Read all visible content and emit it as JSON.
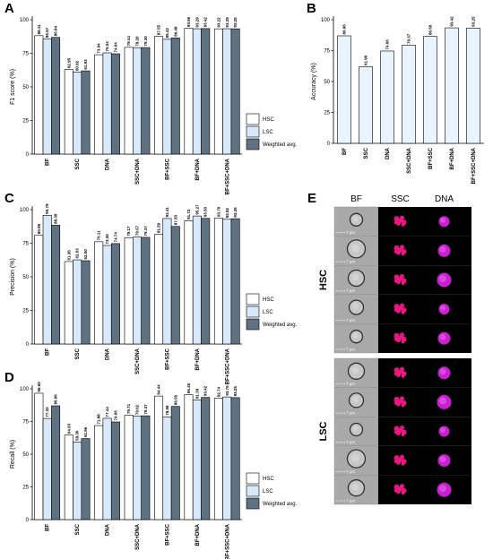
{
  "panels": [
    {
      "letter": "A"
    },
    {
      "letter": "B"
    },
    {
      "letter": "C"
    },
    {
      "letter": "D"
    },
    {
      "letter": "E"
    }
  ],
  "chart_data": [
    {
      "panel": "A",
      "type": "bar",
      "ylabel": "F1 score (%)",
      "ylim": [
        0,
        100
      ],
      "yticks": [
        0,
        25,
        50,
        75,
        100
      ],
      "grid": false,
      "legend_position": "right",
      "categories": [
        "BF",
        "SSC",
        "DNA",
        "SSC+DNA",
        "BF+SSC",
        "BF+DNA",
        "BF+SSC+DNA"
      ],
      "series": [
        {
          "name": "HSC",
          "color": "#ffffff",
          "values": [
            88.11,
            62.95,
            73.94,
            79.44,
            87.55,
            93.56,
            93.22
          ],
          "labels": [
            "88.11",
            "62.95",
            "73.94",
            "79.44",
            "87.55",
            "93.56",
            "93.22"
          ]
        },
        {
          "name": "LSC",
          "color": "#d7e9fa",
          "values": [
            85.57,
            60.92,
            75.34,
            79.2,
            85.42,
            93.29,
            93.29
          ],
          "labels": [
            "85.57",
            "60.92",
            "75.34",
            "79.20",
            "85.42",
            "93.29",
            "93.29"
          ]
        },
        {
          "name": "Weighted avg.",
          "color": "#5f7282",
          "values": [
            86.84,
            61.93,
            74.64,
            79.3,
            86.48,
            93.42,
            93.25
          ],
          "labels": [
            "86.84",
            "61.93",
            "74.64",
            "79.30",
            "86.48",
            "93.42",
            "93.25"
          ]
        }
      ]
    },
    {
      "panel": "B",
      "type": "bar",
      "ylabel": "Accuracy (%)",
      "ylim": [
        0,
        100
      ],
      "yticks": [
        0,
        25,
        50,
        75,
        100
      ],
      "grid": false,
      "categories": [
        "BF",
        "SSC",
        "DNA",
        "SSC+DNA",
        "BF+SSC",
        "BF+DNA",
        "BF+SSC+DNA"
      ],
      "series": [
        {
          "color": "#eaf4fe",
          "values": [
            86.96,
            61.96,
            74.66,
            79.37,
            86.56,
            93.42,
            93.25
          ],
          "labels": [
            "86.96",
            "61.96",
            "74.66",
            "79.37",
            "86.56",
            "93.42",
            "93.25"
          ]
        }
      ]
    },
    {
      "panel": "C",
      "type": "bar",
      "ylabel": "Precision (%)",
      "ylim": [
        0,
        100
      ],
      "yticks": [
        0,
        25,
        50,
        75,
        100
      ],
      "grid": false,
      "legend_position": "right",
      "categories": [
        "BF",
        "SSC",
        "DNA",
        "SSC+DNA",
        "BF+SSC",
        "BF+DNA",
        "BF+SSC+DNA"
      ],
      "series": [
        {
          "name": "HSC",
          "color": "#ffffff",
          "values": [
            80.95,
            61.36,
            76.11,
            79.17,
            81.59,
            91.72,
            93.7
          ],
          "labels": [
            "80.95",
            "61.36",
            "76.11",
            "79.17",
            "81.59",
            "91.72",
            "93.70"
          ]
        },
        {
          "name": "LSC",
          "color": "#d7e9fa",
          "values": [
            95.79,
            62.63,
            73.35,
            79.57,
            93.41,
            95.27,
            92.82
          ],
          "labels": [
            "95.79",
            "62.63",
            "73.35",
            "79.57",
            "93.41",
            "95.27",
            "92.82"
          ]
        },
        {
          "name": "Weighted avg.",
          "color": "#5f7282",
          "values": [
            88.39,
            62.0,
            74.74,
            79.37,
            87.5,
            93.5,
            93.26
          ],
          "labels": [
            "88.39",
            "62.00",
            "74.74",
            "79.37",
            "87.50",
            "93.50",
            "93.26"
          ]
        }
      ]
    },
    {
      "panel": "D",
      "type": "bar",
      "ylabel": "Recall (%)",
      "ylim": [
        0,
        100
      ],
      "yticks": [
        0,
        25,
        50,
        75,
        100
      ],
      "grid": false,
      "legend_position": "right",
      "categories": [
        "BF",
        "SSC",
        "DNA",
        "SSC+DNA",
        "BF+SSC",
        "BF+DNA",
        "BF+SSC+DNA"
      ],
      "series": [
        {
          "name": "HSC",
          "color": "#ffffff",
          "values": [
            96.6,
            64.63,
            71.88,
            79.71,
            94.44,
            95.46,
            92.74
          ],
          "labels": [
            "96.60",
            "64.63",
            "71.88",
            "79.71",
            "94.44",
            "95.46",
            "92.74"
          ]
        },
        {
          "name": "LSC",
          "color": "#d7e9fa",
          "values": [
            77.32,
            59.3,
            77.44,
            79.02,
            78.58,
            91.39,
            93.76
          ],
          "labels": [
            "77.32",
            "59.30",
            "77.44",
            "79.02",
            "78.58",
            "91.39",
            "93.76"
          ]
        },
        {
          "name": "Weighted avg.",
          "color": "#5f7282",
          "values": [
            86.96,
            61.96,
            74.66,
            79.37,
            86.56,
            93.42,
            93.25
          ],
          "labels": [
            "86.96",
            "61.96",
            "74.66",
            "79.37",
            "86.56",
            "93.42",
            "93.25"
          ]
        }
      ]
    }
  ],
  "micro": {
    "headers": [
      "BF",
      "SSC",
      "DNA"
    ],
    "groups": [
      "HSC",
      "LSC"
    ],
    "scale_label": "7 μm",
    "rows_per_group": 5
  }
}
